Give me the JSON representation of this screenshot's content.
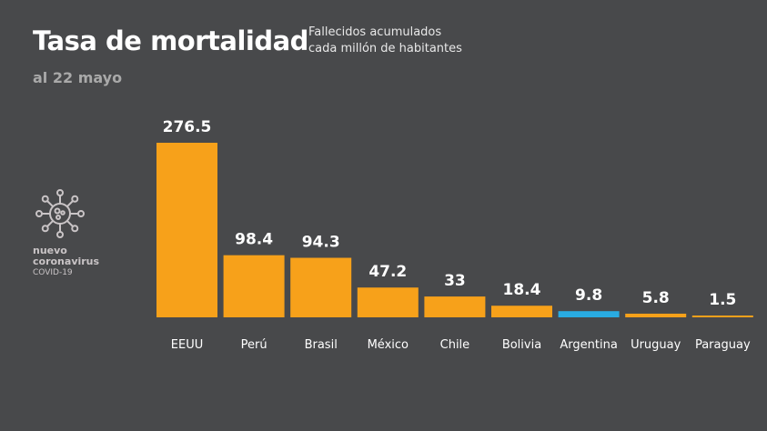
{
  "header": {
    "title": "Tasa de mortalidad",
    "subtitle_line1": "Fallecidos acumulados",
    "subtitle_line2": "cada millón de habitantes",
    "date": "al 22 mayo"
  },
  "logo": {
    "icon": "virus-icon",
    "line1": "nuevo",
    "line2": "coronavirus",
    "line3": "COVID-19"
  },
  "colors": {
    "background": "#48494b",
    "bar": "#f7a11a",
    "highlight": "#29abe2"
  },
  "chart_data": {
    "type": "bar",
    "categories": [
      "EEUU",
      "Perú",
      "Brasil",
      "México",
      "Chile",
      "Bolivia",
      "Argentina",
      "Uruguay",
      "Paraguay"
    ],
    "values": [
      276.5,
      98.4,
      94.3,
      47.2,
      33,
      18.4,
      9.8,
      5.8,
      1.5
    ],
    "value_labels": [
      "276.5",
      "98.4",
      "94.3",
      "47.2",
      "33",
      "18.4",
      "9.8",
      "5.8",
      "1.5"
    ],
    "highlight": "Argentina",
    "title": "Tasa de mortalidad",
    "xlabel": "",
    "ylabel": "",
    "ylim": [
      0,
      276.5
    ],
    "grid": false,
    "legend": "none"
  }
}
